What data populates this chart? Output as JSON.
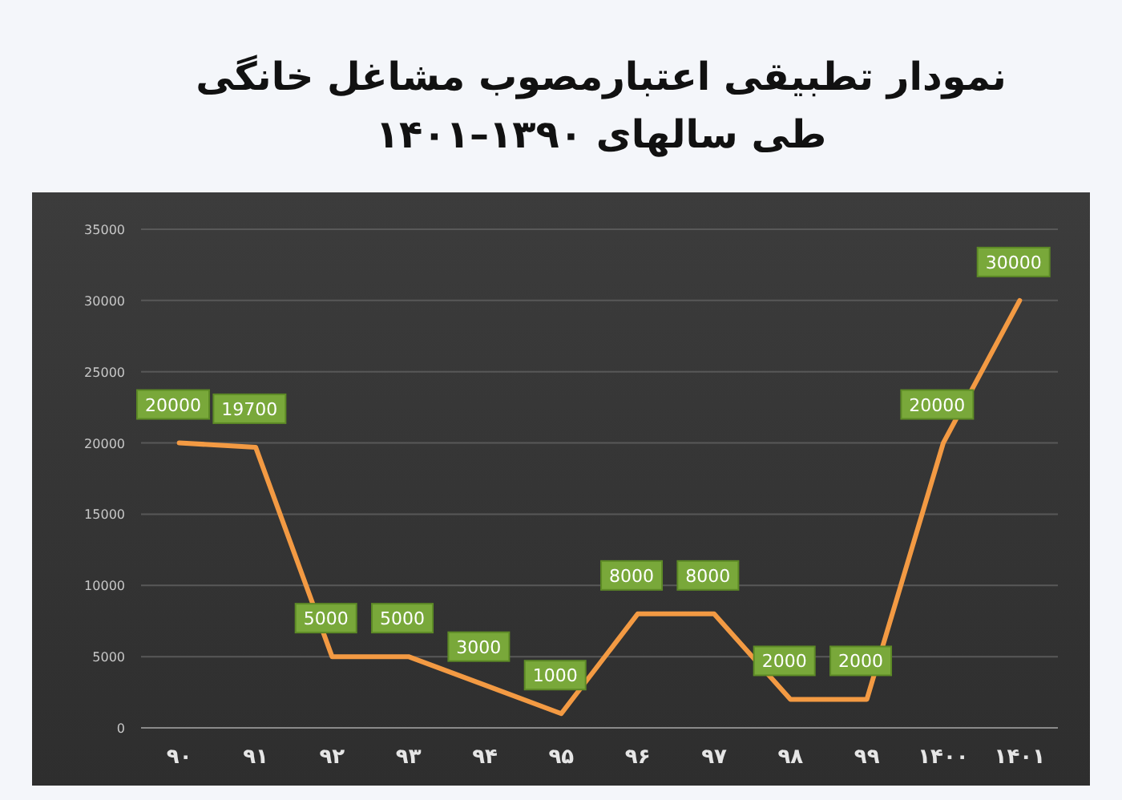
{
  "chart_data": {
    "type": "line",
    "title": "نمودار تطبیقی اعتبارمصوب مشاغل خانگی طی سالهای ۱۳۹۰–۱۴۰۱",
    "categories": [
      "۹۰",
      "۹۱",
      "۹۲",
      "۹۳",
      "۹۴",
      "۹۵",
      "۹۶",
      "۹۷",
      "۹۸",
      "۹۹",
      "۱۴۰۰",
      "۱۴۰۱"
    ],
    "series": [
      {
        "color": "#f39a43",
        "values": [
          20000,
          19700,
          5000,
          5000,
          3000,
          1000,
          8000,
          8000,
          2000,
          2000,
          20000,
          30000
        ]
      }
    ],
    "ylim": [
      0,
      35000
    ],
    "yticks": [
      0,
      5000,
      10000,
      15000,
      20000,
      25000,
      30000,
      35000
    ],
    "grid": "y",
    "marker": "none",
    "line_style": "solid",
    "data_labels": true
  }
}
